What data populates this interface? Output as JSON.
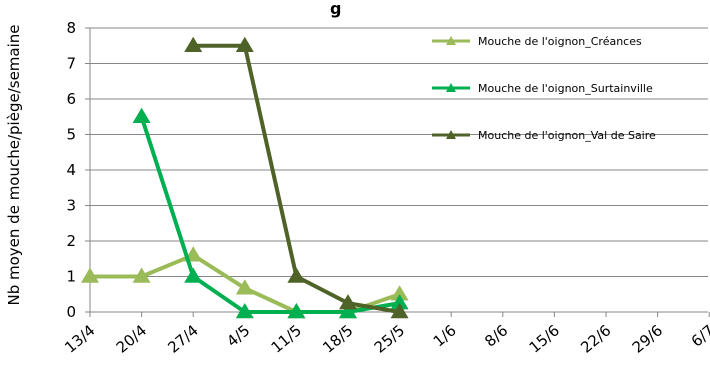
{
  "chart_data": {
    "type": "line",
    "title": "g",
    "xlabel": "",
    "ylabel": "Nb moyen de mouche/piège/semaine",
    "categories": [
      "13/4",
      "20/4",
      "27/4",
      "4/5",
      "11/5",
      "18/5",
      "25/5",
      "1/6",
      "8/6",
      "15/6",
      "22/6",
      "29/6",
      "6/7"
    ],
    "ylim": [
      0,
      8
    ],
    "yticks": [
      0,
      1,
      2,
      3,
      4,
      5,
      6,
      7,
      8
    ],
    "grid": true,
    "legend_position": "top-right",
    "series": [
      {
        "name": "Mouche de l'oignon_Créances",
        "color": "#9bbb59",
        "values": [
          1,
          1,
          1.6,
          0.67,
          0,
          0,
          0.5,
          null,
          null,
          null,
          null,
          null,
          null
        ]
      },
      {
        "name": "Mouche de l'oignon_Surtainville",
        "color": "#00b050",
        "values": [
          null,
          5.5,
          1,
          0,
          0,
          0,
          0.25,
          null,
          null,
          null,
          null,
          null,
          null
        ]
      },
      {
        "name": "Mouche de l'oignon_Val de Saire",
        "color": "#4f6228",
        "values": [
          null,
          null,
          7.5,
          7.5,
          1,
          0.25,
          0,
          null,
          null,
          null,
          null,
          null,
          null
        ]
      }
    ]
  }
}
